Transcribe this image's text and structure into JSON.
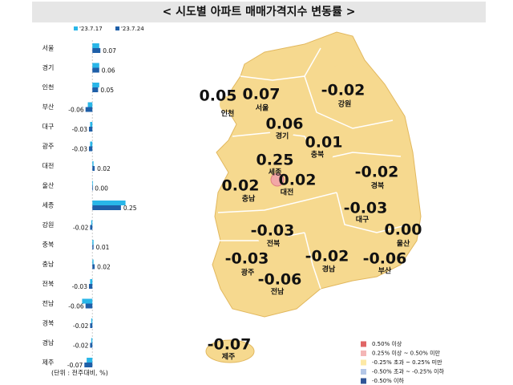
{
  "title": "< 시도별 아파트 매매가격지수 변동률 >",
  "chart_data": {
    "type": "barh",
    "note": "(단위 : 전주대비, %)",
    "categories": [
      "서울",
      "경기",
      "인천",
      "부산",
      "대구",
      "광주",
      "대전",
      "울산",
      "세종",
      "강원",
      "충북",
      "충남",
      "전북",
      "전남",
      "경북",
      "경남",
      "제주"
    ],
    "series": [
      {
        "name": "'23.7.17",
        "color": "#29b6e8",
        "values": [
          0.06,
          0.06,
          0.06,
          -0.04,
          -0.02,
          -0.02,
          0.01,
          0.0,
          0.29,
          -0.01,
          0.01,
          0.01,
          -0.02,
          -0.09,
          -0.01,
          -0.01,
          -0.05
        ]
      },
      {
        "name": "'23.7.24",
        "color": "#1f5fa8",
        "values": [
          0.07,
          0.06,
          0.05,
          -0.06,
          -0.03,
          -0.03,
          0.02,
          0.0,
          0.25,
          -0.02,
          0.01,
          0.02,
          -0.03,
          -0.06,
          -0.02,
          -0.02,
          -0.07
        ],
        "value_labels": [
          "0.07",
          "0.06",
          "0.05",
          "-0.06",
          "-0.03",
          "-0.03",
          "0.02",
          "0.00",
          "0.25",
          "-0.02",
          "0.01",
          "0.02",
          "-0.03",
          "-0.06",
          "-0.02",
          "-0.02",
          "-0.07"
        ]
      }
    ],
    "xlim": [
      -0.1,
      0.3
    ]
  },
  "map": {
    "land_color": "#f6d98f",
    "regions": [
      {
        "name": "인천",
        "label": "0.05",
        "color": "#f6d98f"
      },
      {
        "name": "서울",
        "label": "0.07",
        "color": "#f6d98f"
      },
      {
        "name": "경기",
        "label": "0.06",
        "color": "#f6d98f"
      },
      {
        "name": "강원",
        "label": "-0.02",
        "color": "#f6d98f"
      },
      {
        "name": "충북",
        "label": "0.01",
        "color": "#f6d98f"
      },
      {
        "name": "세종",
        "label": "0.25",
        "color": "#f2a7a7"
      },
      {
        "name": "대전",
        "label": "0.02",
        "color": "#f6d98f"
      },
      {
        "name": "충남",
        "label": "0.02",
        "color": "#f6d98f"
      },
      {
        "name": "경북",
        "label": "-0.02",
        "color": "#f6d98f"
      },
      {
        "name": "대구",
        "label": "-0.03",
        "color": "#f6d98f"
      },
      {
        "name": "울산",
        "label": "0.00",
        "color": "#f6d98f"
      },
      {
        "name": "전북",
        "label": "-0.03",
        "color": "#f6d98f"
      },
      {
        "name": "광주",
        "label": "-0.03",
        "color": "#f6d98f"
      },
      {
        "name": "경남",
        "label": "-0.02",
        "color": "#f6d98f"
      },
      {
        "name": "부산",
        "label": "-0.06",
        "color": "#f6d98f"
      },
      {
        "name": "전남",
        "label": "-0.06",
        "color": "#f6d98f"
      },
      {
        "name": "제주",
        "label": "-0.07",
        "color": "#f6d98f"
      }
    ],
    "legend": [
      {
        "label": "0.50% 이상",
        "color": "#e06666"
      },
      {
        "label": "0.25% 이상 ~ 0.50% 미만",
        "color": "#f4b6b6"
      },
      {
        "label": "-0.25% 초과 ~ 0.25% 미만",
        "color": "#fde9a6"
      },
      {
        "label": "-0.50% 초과 ~ -0.25% 이하",
        "color": "#b4c7e7"
      },
      {
        "label": "-0.50% 이하",
        "color": "#2f5597"
      }
    ]
  }
}
